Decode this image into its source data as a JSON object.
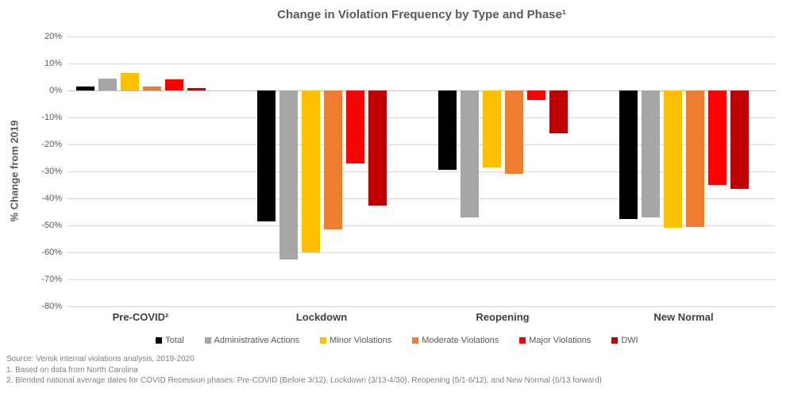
{
  "title": "Change in Violation Frequency by Type and Phase¹",
  "y_axis": {
    "label": "% Change from 2019",
    "tick_values": [
      20,
      10,
      0,
      -10,
      -20,
      -30,
      -40,
      -50,
      -60,
      -70,
      -80
    ],
    "tick_labels": [
      "20%",
      "10%",
      "0%",
      "-10%",
      "-20%",
      "-30%",
      "-40%",
      "-50%",
      "-60%",
      "-70%",
      "-80%"
    ]
  },
  "chart_data": {
    "type": "bar",
    "title": "Change in Violation Frequency by Type and Phase¹",
    "xlabel": "",
    "ylabel": "% Change from 2019",
    "ylim": [
      -80,
      20
    ],
    "grid": true,
    "legend_position": "bottom",
    "categories": [
      "Pre-COVID²",
      "Lockdown",
      "Reopening",
      "New Normal"
    ],
    "series": [
      {
        "name": "Total",
        "color": "#000000",
        "values": [
          1.5,
          -48.5,
          -29.5,
          -47.5
        ]
      },
      {
        "name": "Administrative Actions",
        "color": "#a6a6a6",
        "values": [
          4.5,
          -62.5,
          -47.0,
          -47.0
        ]
      },
      {
        "name": "Minor Violations",
        "color": "#ffc000",
        "values": [
          6.5,
          -60.0,
          -28.5,
          -51.0
        ]
      },
      {
        "name": "Moderate Violations",
        "color": "#ed7d31",
        "values": [
          1.5,
          -51.5,
          -31.0,
          -50.5
        ]
      },
      {
        "name": "Major Violations",
        "color": "#ff0000",
        "values": [
          4.0,
          -27.0,
          -3.5,
          -35.0
        ]
      },
      {
        "name": "DWI",
        "color": "#c00000",
        "values": [
          1.0,
          -42.5,
          -16.0,
          -36.5
        ]
      }
    ]
  },
  "footer": {
    "lines": [
      "Source: Verisk internal violations analysis, 2019-2020",
      "1. Based on data from North Carolina",
      "2. Blended national average dates for COVID Recession phases: Pre-COVID (Before 3/12), Lockdown (3/13-4/30), Reopening (5/1-6/12), and New Normal (6/13 forward)"
    ]
  }
}
